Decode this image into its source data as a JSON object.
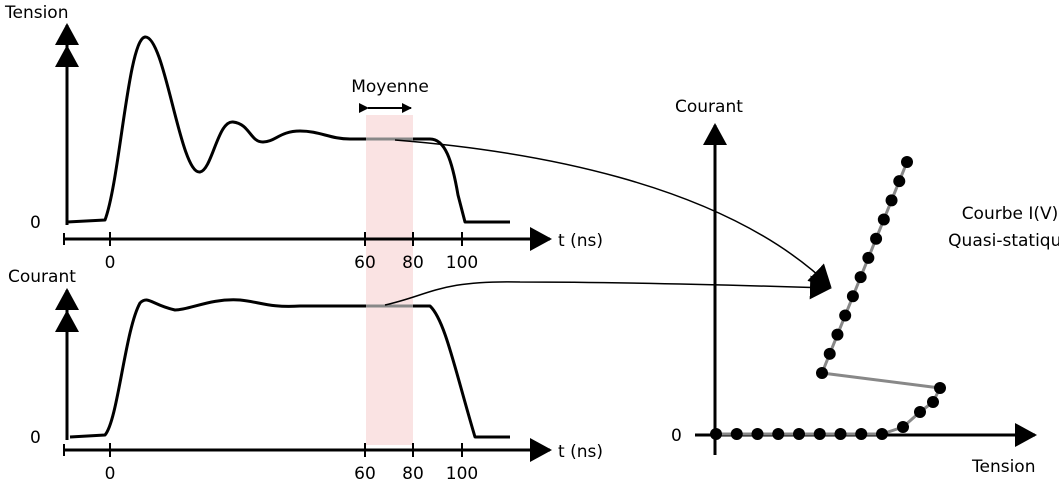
{
  "panels": [
    {
      "y_label": "Tension",
      "zero": "0",
      "ticks": [
        "0",
        "60",
        "80",
        "100"
      ],
      "x_label": "t (ns)"
    },
    {
      "y_label": "Courant",
      "zero": "0",
      "ticks": [
        "0",
        "60",
        "80",
        "100"
      ],
      "x_label": "t (ns)"
    }
  ],
  "window_label": "Moyenne",
  "iv": {
    "y_label": "Courant",
    "x_label": "Tension",
    "zero": "0",
    "curve_label": [
      "Courbe I(V)",
      "Quasi-statique"
    ]
  }
}
